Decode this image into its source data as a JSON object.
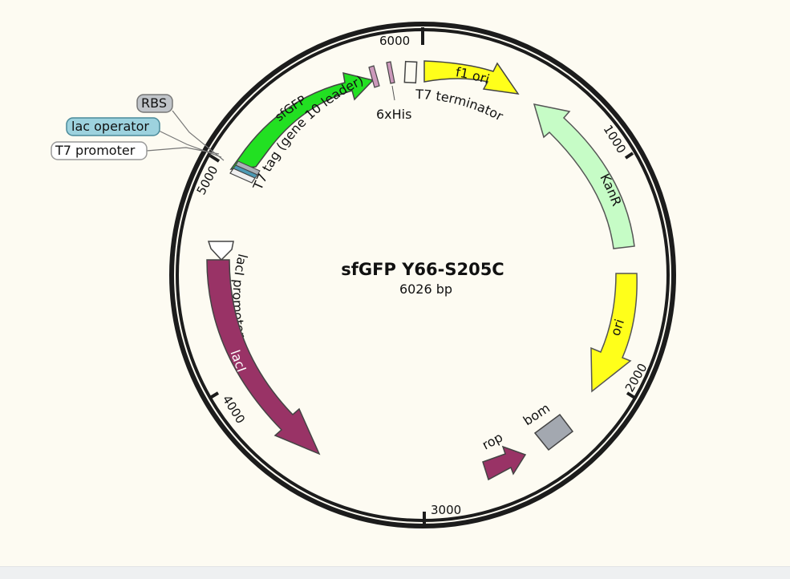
{
  "plasmid": {
    "name": "sfGFP Y66-S205C",
    "length_label": "6026 bp",
    "total_bp": 6026
  },
  "ticks": [
    "1000",
    "2000",
    "3000",
    "4000",
    "5000",
    "6000"
  ],
  "features": {
    "sfgfp": "sfGFP",
    "t7_tag": "T7 tag (gene 10 leader)",
    "his": "6xHis",
    "t7_terminator": "T7 terminator",
    "f1_ori": "f1 ori",
    "kanr": "KanR",
    "ori": "ori",
    "bom": "bom",
    "rop": "rop",
    "laci": "lacI",
    "laci_promoter": "lacI promoter",
    "rbs": "RBS",
    "lac_operator": "lac operator",
    "t7_promoter": "T7 promoter"
  },
  "colors": {
    "sfgfp": "#22e022",
    "f1_ori": "#ffff1a",
    "kanr": "#c6fcc6",
    "ori": "#ffff1a",
    "laci": "#993366",
    "rop": "#993366",
    "bom": "#a3a8b0",
    "t7_tag": "#cc99bb",
    "his": "#cc99bb",
    "rbs_callout": "#c0c4c9",
    "lac_operator_callout": "#9dd2de",
    "t7_promoter_callout": "#ffffff"
  }
}
